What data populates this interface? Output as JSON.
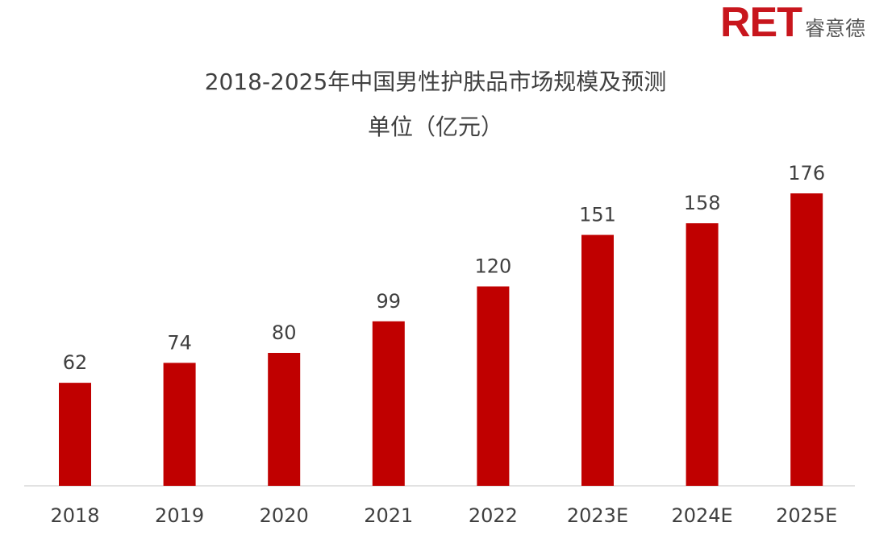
{
  "logo": {
    "mark": "RET",
    "text": "睿意德"
  },
  "chart_data": {
    "type": "bar",
    "title": "2018-2025年中国男性护肤品市场规模及预测",
    "subtitle": "单位（亿元）",
    "categories": [
      "2018",
      "2019",
      "2020",
      "2021",
      "2022",
      "2023E",
      "2024E",
      "2025E"
    ],
    "values": [
      62,
      74,
      80,
      99,
      120,
      151,
      158,
      176
    ],
    "ylim": [
      0,
      176
    ],
    "grid": false,
    "legend": "none",
    "bar_color": "#c00000",
    "data_labels": true
  }
}
